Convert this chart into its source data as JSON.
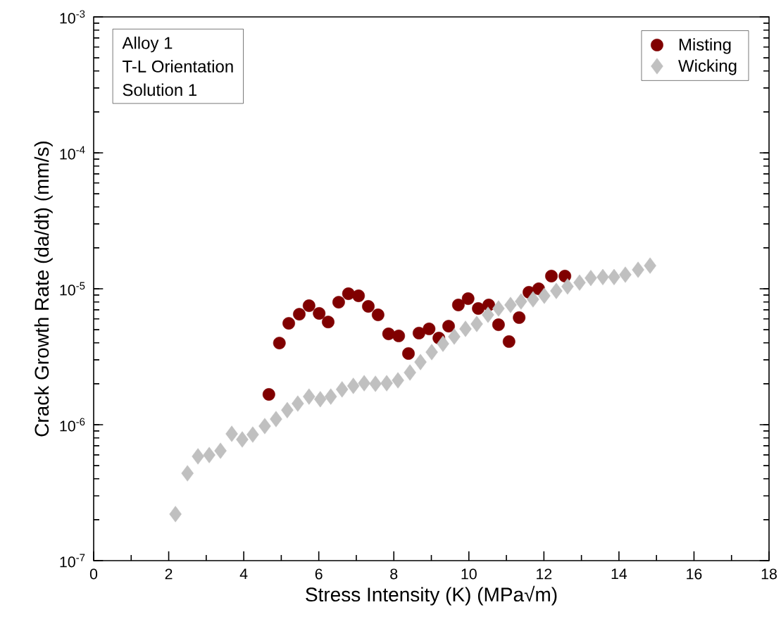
{
  "chart_data": {
    "type": "scatter",
    "xlabel": "Stress Intensity (K) (MPa√m)",
    "ylabel": "Crack Growth Rate (da/dt) (mm/s)",
    "annotations": [
      "Alloy 1",
      "T-L Orientation",
      "Solution 1"
    ],
    "xlim": [
      0,
      18
    ],
    "xticks": [
      0,
      2,
      4,
      6,
      8,
      10,
      12,
      14,
      16,
      18
    ],
    "ylim": [
      1e-07,
      0.001
    ],
    "yticks": [
      {
        "value": 1e-07,
        "label": "10$^{-7}$"
      },
      {
        "value": 1e-06,
        "label": "10$^{-6}$"
      },
      {
        "value": 1e-05,
        "label": "10$^{-5}$"
      },
      {
        "value": 0.0001,
        "label": "10$^{-4}$"
      },
      {
        "value": 0.001,
        "label": "10$^{-3}$"
      }
    ],
    "log": "y",
    "grid": false,
    "legend": "top right",
    "series": [
      {
        "name": "Misting",
        "color": "#800000",
        "marker": "circle",
        "x": [
          4.67,
          4.95,
          5.2,
          5.48,
          5.74,
          6.01,
          6.25,
          6.53,
          6.79,
          7.06,
          7.32,
          7.58,
          7.86,
          8.13,
          8.39,
          8.67,
          8.94,
          9.2,
          9.46,
          9.72,
          9.98,
          10.25,
          10.53,
          10.79,
          11.07,
          11.34,
          11.6,
          11.86,
          12.2,
          12.56
        ],
        "values": [
          1.67e-06,
          3.99e-06,
          5.57e-06,
          6.5e-06,
          7.51e-06,
          6.59e-06,
          5.7e-06,
          7.97e-06,
          9.2e-06,
          8.88e-06,
          7.42e-06,
          6.43e-06,
          4.66e-06,
          4.5e-06,
          3.34e-06,
          4.72e-06,
          5.07e-06,
          4.34e-06,
          5.31e-06,
          7.6e-06,
          8.46e-06,
          7.16e-06,
          7.6e-06,
          5.44e-06,
          4.09e-06,
          6.14e-06,
          9.42e-06,
          1e-05,
          1.24e-05,
          1.24e-05
        ]
      },
      {
        "name": "Wicking",
        "color": "#c0c0c0",
        "marker": "diamond",
        "x": [
          2.18,
          2.5,
          2.78,
          3.08,
          3.38,
          3.68,
          3.96,
          4.24,
          4.56,
          4.86,
          5.16,
          5.44,
          5.74,
          6.04,
          6.32,
          6.62,
          6.92,
          7.21,
          7.51,
          7.81,
          8.11,
          8.43,
          8.71,
          9.01,
          9.31,
          9.61,
          9.91,
          10.21,
          10.51,
          10.79,
          11.11,
          11.39,
          11.71,
          12.01,
          12.33,
          12.63,
          12.95,
          13.25,
          13.57,
          13.87,
          14.17,
          14.51,
          14.83
        ],
        "values": [
          2.2e-07,
          4.39e-07,
          5.85e-07,
          5.98e-07,
          6.43e-07,
          8.57e-07,
          7.79e-07,
          8.46e-07,
          9.77e-07,
          1.1e-06,
          1.28e-06,
          1.43e-06,
          1.61e-06,
          1.54e-06,
          1.61e-06,
          1.82e-06,
          1.93e-06,
          2.02e-06,
          2e-06,
          2.02e-06,
          2.12e-06,
          2.42e-06,
          2.89e-06,
          3.42e-06,
          3.94e-06,
          4.45e-06,
          5.07e-06,
          5.51e-06,
          6.43e-06,
          7.16e-06,
          7.6e-06,
          8.07e-06,
          8.36e-06,
          8.88e-06,
          9.64e-06,
          1.04e-05,
          1.11e-05,
          1.2e-05,
          1.22e-05,
          1.22e-05,
          1.27e-05,
          1.38e-05,
          1.48e-05
        ]
      }
    ]
  }
}
